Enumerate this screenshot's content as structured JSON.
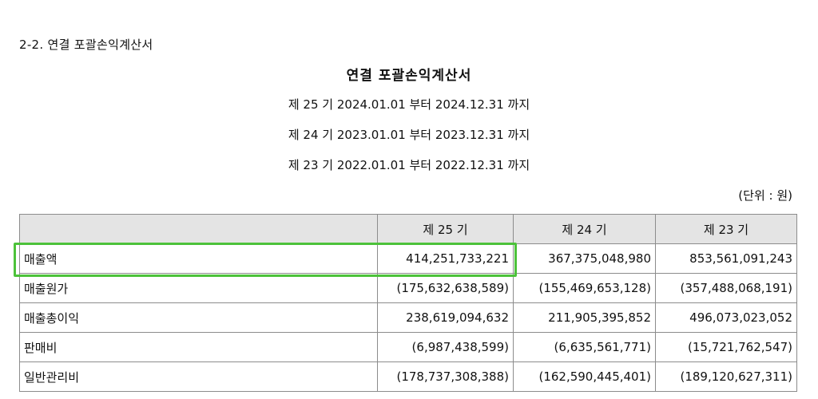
{
  "section_heading": "2-2. 연결 포괄손익계산서",
  "title": "연결 포괄손익계산서",
  "periods": [
    "제 25 기 2024.01.01 부터 2024.12.31 까지",
    "제 24 기 2023.01.01 부터 2023.12.31 까지",
    "제 23 기 2022.01.01 부터 2022.12.31 까지"
  ],
  "unit": "(단위 : 원)",
  "table": {
    "columns": [
      "",
      "제 25 기",
      "제 24 기",
      "제 23 기"
    ],
    "rows": [
      {
        "label": "매출액",
        "values": [
          "414,251,733,221",
          "367,375,048,980",
          "853,561,091,243"
        ]
      },
      {
        "label": "매출원가",
        "values": [
          "(175,632,638,589)",
          "(155,469,653,128)",
          "(357,488,068,191)"
        ]
      },
      {
        "label": "매출총이익",
        "values": [
          "238,619,094,632",
          "211,905,395,852",
          "496,073,023,052"
        ]
      },
      {
        "label": "판매비",
        "values": [
          "(6,987,438,599)",
          "(6,635,561,771)",
          "(15,721,762,547)"
        ]
      },
      {
        "label": "일반관리비",
        "values": [
          "(178,737,308,388)",
          "(162,590,445,401)",
          "(189,120,627,311)"
        ]
      }
    ]
  },
  "colors": {
    "highlight": "#4cc23a",
    "header_bg": "#e4e4e4",
    "border": "#8c8c8c"
  }
}
